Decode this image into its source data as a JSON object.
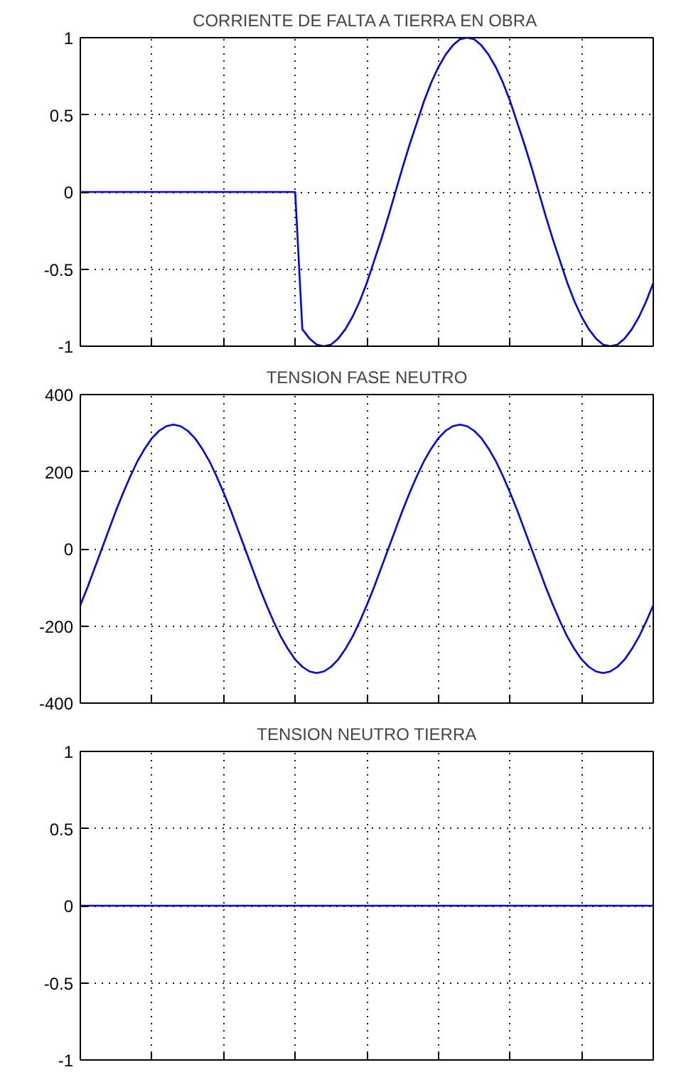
{
  "chart_data": [
    {
      "type": "line",
      "title": "CORRIENTE DE FALTA A TIERRA EN OBRA",
      "tick_labels": "y",
      "grid": true,
      "ylim": [
        -1,
        1
      ],
      "yticks": [
        -1,
        -0.5,
        0,
        0.5,
        1
      ],
      "categories": [
        null,
        null,
        null,
        null,
        null,
        null,
        null,
        null,
        null,
        null,
        null,
        null,
        null,
        null,
        null,
        null,
        null,
        null,
        null,
        null,
        null,
        null,
        null,
        null,
        null,
        null,
        null,
        null,
        null,
        null,
        null,
        null,
        null,
        null,
        null,
        null,
        null,
        null,
        null,
        null,
        null,
        null,
        null,
        null,
        null,
        null,
        null,
        null,
        null,
        null,
        null,
        null,
        null,
        null,
        null,
        null,
        null,
        null,
        null,
        null,
        null,
        null,
        null,
        null,
        null,
        null,
        null,
        null,
        null,
        null,
        null,
        null,
        null,
        null,
        null,
        null,
        null,
        null,
        null,
        null,
        null
      ],
      "series": [
        {
          "color": "#0000ff",
          "values": [
            0,
            0,
            0,
            0,
            0,
            0,
            0,
            0,
            0,
            0,
            0,
            0,
            0,
            0,
            0,
            0,
            0,
            0,
            0,
            0,
            0,
            0,
            0,
            0,
            0,
            0,
            0,
            0,
            0,
            0,
            0,
            -0.89,
            -0.95,
            -0.99,
            -1,
            -0.99,
            -0.95,
            -0.89,
            -0.81,
            -0.71,
            -0.59,
            -0.45,
            -0.31,
            -0.16,
            0,
            0.16,
            0.31,
            0.45,
            0.59,
            0.71,
            0.81,
            0.89,
            0.95,
            0.99,
            1,
            0.99,
            0.95,
            0.89,
            0.81,
            0.71,
            0.59,
            0.45,
            0.31,
            0.16,
            0,
            -0.16,
            -0.31,
            -0.45,
            -0.59,
            -0.71,
            -0.81,
            -0.89,
            -0.95,
            -0.99,
            -1,
            -0.99,
            -0.95,
            -0.89,
            -0.81,
            -0.71,
            -0.59
          ]
        }
      ]
    },
    {
      "type": "line",
      "title": "TENSION FASE NEUTRO",
      "tick_labels": "y",
      "grid": true,
      "ylim": [
        -400,
        400
      ],
      "yticks": [
        -400,
        -200,
        0,
        200,
        400
      ],
      "categories": [
        null,
        null,
        null,
        null,
        null,
        null,
        null,
        null,
        null,
        null,
        null,
        null,
        null,
        null,
        null,
        null,
        null,
        null,
        null,
        null,
        null,
        null,
        null,
        null,
        null,
        null,
        null,
        null,
        null,
        null,
        null,
        null,
        null,
        null,
        null,
        null,
        null,
        null,
        null,
        null,
        null,
        null,
        null,
        null,
        null,
        null,
        null,
        null,
        null,
        null,
        null,
        null,
        null,
        null,
        null,
        null,
        null,
        null,
        null,
        null,
        null,
        null,
        null,
        null,
        null,
        null,
        null,
        null,
        null,
        null,
        null,
        null,
        null,
        null,
        null,
        null,
        null,
        null,
        null,
        null,
        null
      ],
      "series": [
        {
          "color": "#0000ff",
          "values": [
            -146,
            -100,
            -50,
            0,
            50,
            100,
            146,
            189,
            228,
            260,
            287,
            306,
            318,
            322,
            318,
            306,
            287,
            260,
            228,
            189,
            146,
            100,
            50,
            0,
            -50,
            -100,
            -146,
            -189,
            -228,
            -260,
            -287,
            -306,
            -318,
            -322,
            -318,
            -306,
            -287,
            -260,
            -228,
            -189,
            -146,
            -100,
            -50,
            0,
            50,
            100,
            146,
            189,
            228,
            260,
            287,
            306,
            318,
            322,
            318,
            306,
            287,
            260,
            228,
            189,
            146,
            100,
            50,
            0,
            -50,
            -100,
            -146,
            -189,
            -228,
            -260,
            -287,
            -306,
            -318,
            -322,
            -318,
            -306,
            -287,
            -260,
            -228,
            -189,
            -146
          ]
        }
      ]
    },
    {
      "type": "line",
      "title": "TENSION NEUTRO TIERRA",
      "tick_labels": "y",
      "grid": true,
      "ylim": [
        -1,
        1
      ],
      "yticks": [
        -1,
        -0.5,
        0,
        0.5,
        1
      ],
      "categories": [
        null,
        null,
        null,
        null,
        null,
        null,
        null,
        null,
        null,
        null,
        null,
        null,
        null,
        null,
        null,
        null,
        null,
        null,
        null,
        null,
        null,
        null,
        null,
        null,
        null,
        null,
        null,
        null,
        null,
        null,
        null,
        null,
        null,
        null,
        null,
        null,
        null,
        null,
        null,
        null,
        null,
        null,
        null,
        null,
        null,
        null,
        null,
        null,
        null,
        null,
        null,
        null,
        null,
        null,
        null,
        null,
        null,
        null,
        null,
        null,
        null,
        null,
        null,
        null,
        null,
        null,
        null,
        null,
        null,
        null,
        null,
        null,
        null,
        null,
        null,
        null,
        null,
        null,
        null,
        null,
        null
      ],
      "series": [
        {
          "color": "#0000ff",
          "values": [
            0,
            0,
            0,
            0,
            0,
            0,
            0,
            0,
            0,
            0,
            0,
            0,
            0,
            0,
            0,
            0,
            0,
            0,
            0,
            0,
            0,
            0,
            0,
            0,
            0,
            0,
            0,
            0,
            0,
            0,
            0,
            0,
            0,
            0,
            0,
            0,
            0,
            0,
            0,
            0,
            0,
            0,
            0,
            0,
            0,
            0,
            0,
            0,
            0,
            0,
            0,
            0,
            0,
            0,
            0,
            0,
            0,
            0,
            0,
            0,
            0,
            0,
            0,
            0,
            0,
            0,
            0,
            0,
            0,
            0,
            0,
            0,
            0,
            0,
            0,
            0,
            0,
            0,
            0,
            0,
            0
          ]
        }
      ]
    }
  ]
}
